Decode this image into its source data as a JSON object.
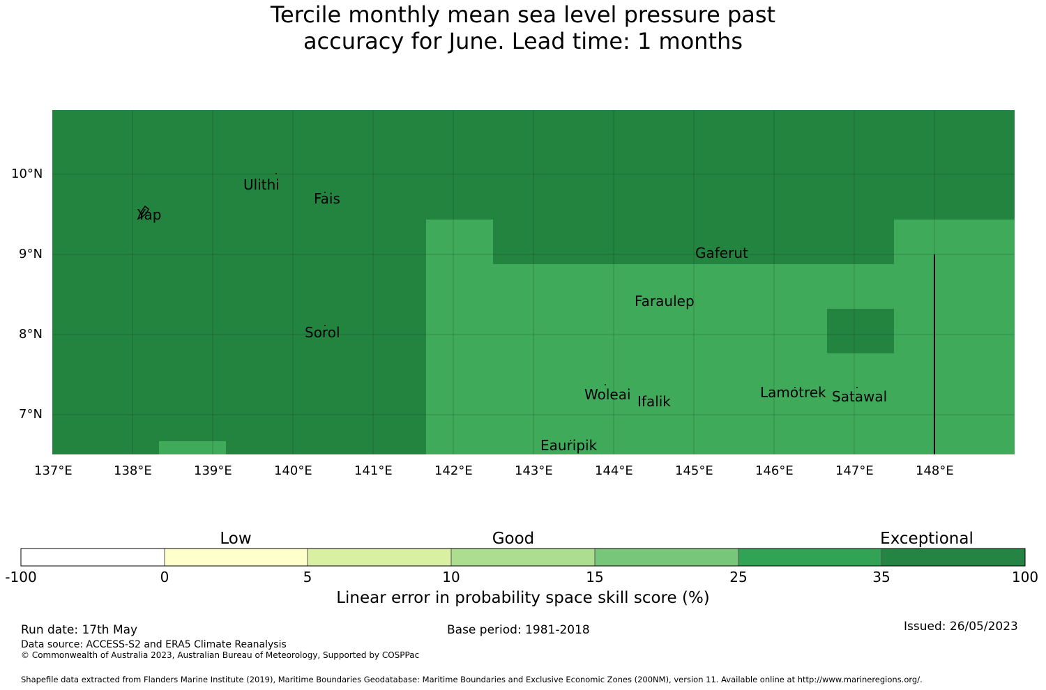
{
  "title_line1": "Tercile monthly mean sea level pressure past",
  "title_line2": "accuracy for June. Lead time: 1 months",
  "map": {
    "lat_labels": [
      "10°N",
      "9°N",
      "8°N",
      "7°N"
    ],
    "lon_labels": [
      "137°E",
      "138°E",
      "139°E",
      "140°E",
      "141°E",
      "142°E",
      "143°E",
      "144°E",
      "145°E",
      "146°E",
      "147°E",
      "148°E"
    ],
    "islands": [
      "Ulithi",
      "Fais",
      "Yap",
      "Gaferut",
      "Faraulep",
      "Sorol",
      "Woleai",
      "Ifalik",
      "Lamotrek",
      "Satawal",
      "Eauripik"
    ],
    "colors": {
      "exceptional": "#23843f",
      "good_high": "#3faa5a"
    }
  },
  "colorbar": {
    "categories": [
      "Low",
      "Good",
      "Exceptional"
    ],
    "ticks": [
      "-100",
      "0",
      "5",
      "10",
      "15",
      "25",
      "35",
      "100"
    ],
    "colors": [
      "#ffffff",
      "#ffffcc",
      "#d9f0a3",
      "#addd8e",
      "#78c679",
      "#31a354",
      "#238443"
    ],
    "label": "Linear error in probability space skill score (%)"
  },
  "footer": {
    "run_date": "Run date: 17th May",
    "base_period": "Base period: 1981-2018",
    "issued": "Issued: 26/05/2023",
    "data_source": "Data source: ACCESS-S2 and ERA5 Climate Reanalysis",
    "copyright": "© Commonwealth of Australia 2023, Australian Bureau of Meteorology, Supported by COSPPac",
    "shapefile": "Shapefile data extracted from Flanders Marine Institute (2019), Maritime Boundaries Geodatabase: Maritime Boundaries and Exclusive Economic Zones (200NM), version 11. Available online at http://www.marineregions.org/."
  }
}
